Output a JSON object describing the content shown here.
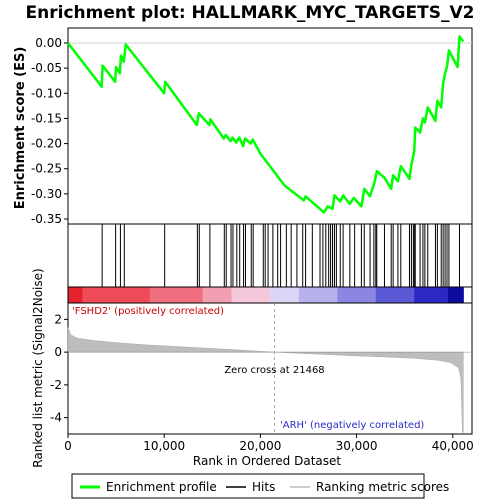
{
  "chart_data": {
    "type": "line",
    "title": "Enrichment plot: HALLMARK_MYC_TARGETS_V2",
    "xlabel": "Rank in Ordered Dataset",
    "xlim": [
      0,
      42000
    ],
    "x_ticks": [
      0,
      10000,
      20000,
      30000,
      40000
    ],
    "x_tick_labels": [
      "0",
      "10,000",
      "20,000",
      "30,000",
      "40,000"
    ],
    "top_panel": {
      "ylabel": "Enrichment score (ES)",
      "ylim": [
        -0.35,
        0.0
      ],
      "y_ticks": [
        0.0,
        -0.05,
        -0.1,
        -0.15,
        -0.2,
        -0.25,
        -0.3,
        -0.35
      ],
      "y_tick_labels": [
        "0.00",
        "-0.05",
        "-0.10",
        "-0.15",
        "-0.20",
        "-0.25",
        "-0.30",
        "-0.35"
      ],
      "series": [
        {
          "name": "Enrichment profile",
          "color": "#00ff00",
          "points": [
            [
              0,
              0.0
            ],
            [
              3500,
              -0.087
            ],
            [
              3600,
              -0.045
            ],
            [
              4900,
              -0.077
            ],
            [
              5000,
              -0.048
            ],
            [
              5400,
              -0.06
            ],
            [
              5500,
              -0.025
            ],
            [
              5800,
              -0.037
            ],
            [
              6000,
              -0.003
            ],
            [
              10000,
              -0.1
            ],
            [
              10100,
              -0.077
            ],
            [
              13400,
              -0.163
            ],
            [
              13600,
              -0.14
            ],
            [
              14700,
              -0.163
            ],
            [
              14800,
              -0.152
            ],
            [
              16200,
              -0.19
            ],
            [
              16400,
              -0.183
            ],
            [
              16900,
              -0.195
            ],
            [
              17100,
              -0.188
            ],
            [
              17500,
              -0.198
            ],
            [
              17800,
              -0.188
            ],
            [
              18200,
              -0.205
            ],
            [
              18400,
              -0.19
            ],
            [
              19000,
              -0.2
            ],
            [
              19200,
              -0.192
            ],
            [
              20000,
              -0.22
            ],
            [
              22500,
              -0.283
            ],
            [
              24500,
              -0.313
            ],
            [
              24700,
              -0.305
            ],
            [
              26200,
              -0.33
            ],
            [
              26600,
              -0.337
            ],
            [
              27000,
              -0.325
            ],
            [
              27500,
              -0.33
            ],
            [
              27700,
              -0.303
            ],
            [
              28300,
              -0.315
            ],
            [
              28600,
              -0.303
            ],
            [
              29300,
              -0.32
            ],
            [
              29700,
              -0.308
            ],
            [
              30500,
              -0.325
            ],
            [
              30800,
              -0.29
            ],
            [
              31400,
              -0.305
            ],
            [
              31900,
              -0.275
            ],
            [
              32100,
              -0.255
            ],
            [
              32900,
              -0.268
            ],
            [
              33600,
              -0.29
            ],
            [
              33800,
              -0.263
            ],
            [
              34300,
              -0.275
            ],
            [
              34600,
              -0.245
            ],
            [
              35500,
              -0.27
            ],
            [
              35700,
              -0.242
            ],
            [
              36000,
              -0.215
            ],
            [
              36100,
              -0.168
            ],
            [
              36600,
              -0.178
            ],
            [
              36900,
              -0.15
            ],
            [
              37100,
              -0.158
            ],
            [
              37400,
              -0.128
            ],
            [
              38200,
              -0.155
            ],
            [
              38400,
              -0.115
            ],
            [
              38800,
              -0.128
            ],
            [
              39000,
              -0.08
            ],
            [
              39200,
              -0.06
            ],
            [
              39400,
              -0.047
            ],
            [
              39600,
              -0.015
            ],
            [
              40500,
              -0.048
            ],
            [
              40700,
              0.013
            ],
            [
              41100,
              0.003
            ]
          ]
        }
      ]
    },
    "hits": {
      "name": "Hits",
      "color": "#000000",
      "positions": [
        3550,
        4950,
        5450,
        5850,
        10050,
        13450,
        13650,
        14750,
        16250,
        16450,
        16950,
        17150,
        17550,
        17850,
        18250,
        18450,
        19050,
        19250,
        20300,
        20500,
        20800,
        21300,
        21800,
        22100,
        22700,
        23200,
        23800,
        24400,
        24700,
        25400,
        26200,
        26500,
        26800,
        27100,
        27300,
        27500,
        27700,
        27900,
        28300,
        28600,
        29300,
        29800,
        30500,
        30800,
        31400,
        31800,
        32000,
        32100,
        32900,
        33600,
        33800,
        34300,
        34600,
        35500,
        35700,
        35900,
        36000,
        36100,
        36600,
        36900,
        37100,
        37400,
        38200,
        38400,
        38800,
        39000,
        39200,
        39400,
        39600,
        40700
      ]
    },
    "rank_bar": {
      "colors": [
        "#e8212f",
        "#f04b58",
        "#ef6f80",
        "#f29fb1",
        "#f5c8dc",
        "#dcd6f6",
        "#b7b2ee",
        "#8a86e2",
        "#5b58d6",
        "#2b28c4",
        "#0b0b9e"
      ],
      "breaks": [
        0,
        1500,
        8500,
        14000,
        17000,
        21000,
        24000,
        28000,
        32000,
        36000,
        39500,
        41100
      ]
    },
    "bottom_panel": {
      "ylabel": "Ranked list metric (Signal2Noise)",
      "ylim": [
        -5,
        3
      ],
      "y_ticks": [
        2,
        0,
        -2,
        -4
      ],
      "y_tick_labels": [
        "2",
        "0",
        "-2",
        "-4"
      ],
      "zero_cross_label": "Zero cross at 21468",
      "zero_cross": 21468,
      "pos_label": "'FSHD2' (positively correlated)",
      "neg_label": "'ARH' (negatively correlated)",
      "metric_points": [
        [
          0,
          1.5
        ],
        [
          300,
          1.05
        ],
        [
          1000,
          0.85
        ],
        [
          2500,
          0.72
        ],
        [
          5000,
          0.58
        ],
        [
          8000,
          0.45
        ],
        [
          11000,
          0.35
        ],
        [
          14000,
          0.25
        ],
        [
          17000,
          0.16
        ],
        [
          19500,
          0.07
        ],
        [
          21468,
          0.0
        ],
        [
          24000,
          -0.07
        ],
        [
          27000,
          -0.15
        ],
        [
          30000,
          -0.23
        ],
        [
          33000,
          -0.3
        ],
        [
          36000,
          -0.38
        ],
        [
          38500,
          -0.5
        ],
        [
          39800,
          -0.65
        ],
        [
          40600,
          -0.95
        ],
        [
          40850,
          -1.6
        ],
        [
          41000,
          -4.9
        ],
        [
          41100,
          -4.9
        ]
      ]
    },
    "legend": {
      "placement": "bottom",
      "items": [
        {
          "label": "Enrichment profile",
          "color": "#00ff00",
          "style": "line"
        },
        {
          "label": "Hits",
          "color": "#000000",
          "style": "line"
        },
        {
          "label": "Ranking metric scores",
          "color": "#bdbdbd",
          "style": "line"
        }
      ]
    }
  }
}
